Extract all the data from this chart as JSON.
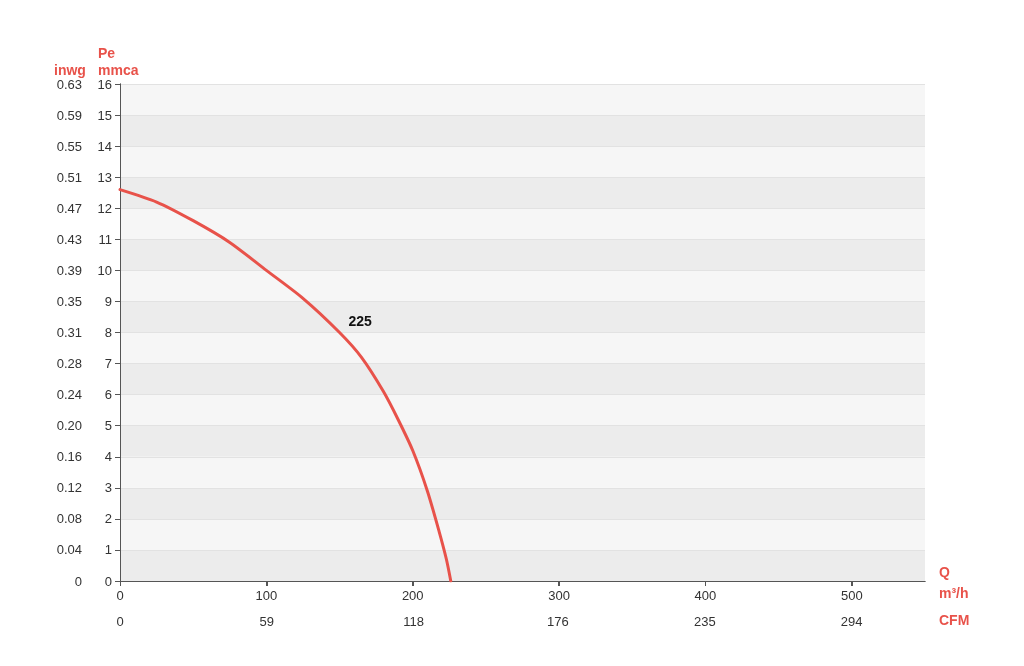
{
  "chart_data": {
    "type": "line",
    "ylabel": "Pe\nmmca",
    "y2label": "inwg",
    "xlabel": "Q\nm³/h",
    "x2label": "CFM",
    "xlim": [
      0,
      550
    ],
    "xticks": [
      0,
      100,
      200,
      300,
      400,
      500
    ],
    "x2lim": [
      0,
      323.5
    ],
    "x2ticks": [
      0,
      59,
      118,
      176,
      235,
      294
    ],
    "ylim": [
      0,
      16
    ],
    "yticks": [
      0,
      1,
      2,
      3,
      4,
      5,
      6,
      7,
      8,
      9,
      10,
      11,
      12,
      13,
      14,
      15,
      16
    ],
    "y2lim": [
      0,
      0.63
    ],
    "y2ticks": [
      0,
      {
        "value": 0.0394,
        "label": "0.04"
      },
      {
        "value": 0.0787,
        "label": "0.08"
      },
      {
        "value": 0.1181,
        "label": "0.12"
      },
      {
        "value": 0.1575,
        "label": "0.16"
      },
      {
        "value": 0.1969,
        "label": "0.20"
      },
      {
        "value": 0.2362,
        "label": "0.24"
      },
      {
        "value": 0.2756,
        "label": "0.28"
      },
      {
        "value": 0.315,
        "label": "0.31"
      },
      {
        "value": 0.3543,
        "label": "0.35"
      },
      {
        "value": 0.3937,
        "label": "0.39"
      },
      {
        "value": 0.4331,
        "label": "0.43"
      },
      {
        "value": 0.4724,
        "label": "0.47"
      },
      {
        "value": 0.5118,
        "label": "0.51"
      },
      {
        "value": 0.5512,
        "label": "0.55"
      },
      {
        "value": 0.5906,
        "label": "0.59"
      },
      {
        "value": 0.6299,
        "label": "0.63"
      }
    ],
    "grid": "y",
    "series": [
      {
        "name": "225",
        "color": "#e8524a",
        "x": [
          0,
          25,
          50,
          75,
          100,
          125,
          150,
          165,
          180,
          190,
          200,
          210,
          218,
          223,
          226
        ],
        "values": [
          12.6,
          12.2,
          11.6,
          10.9,
          10.0,
          9.1,
          8.0,
          7.2,
          6.1,
          5.2,
          4.2,
          2.9,
          1.6,
          0.7,
          0
        ]
      }
    ]
  }
}
